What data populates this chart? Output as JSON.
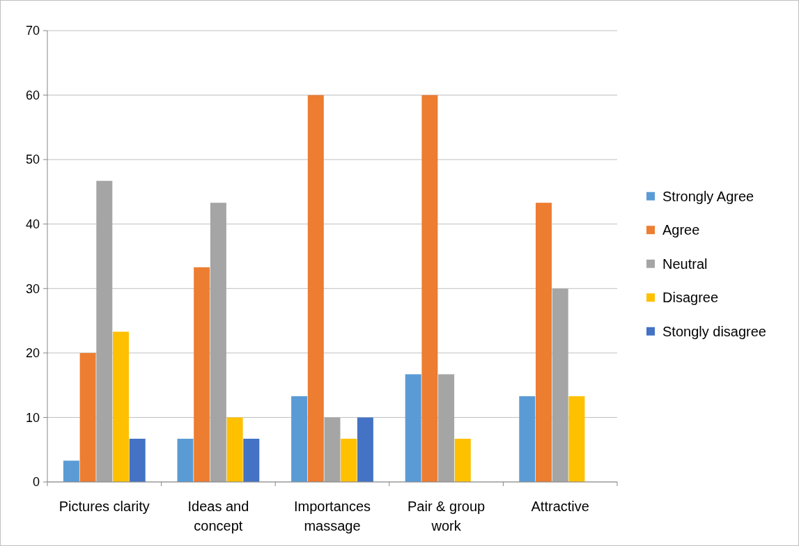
{
  "chart_data": {
    "type": "bar",
    "categories": [
      "Pictures clarity",
      "Ideas and concept",
      "Importances massage",
      "Pair & group work",
      "Attractive"
    ],
    "series": [
      {
        "name": "Strongly Agree",
        "color": "#5b9bd5",
        "values": [
          3.3,
          6.7,
          13.3,
          16.7,
          13.3
        ]
      },
      {
        "name": "Agree",
        "color": "#ed7d31",
        "values": [
          20,
          33.3,
          60,
          60,
          43.3
        ]
      },
      {
        "name": "Neutral",
        "color": "#a5a5a5",
        "values": [
          46.7,
          43.3,
          10,
          16.7,
          30
        ]
      },
      {
        "name": "Disagree",
        "color": "#ffc000",
        "values": [
          23.3,
          10,
          6.7,
          6.7,
          13.3
        ]
      },
      {
        "name": "Stongly disagree",
        "color": "#4472c4",
        "values": [
          6.7,
          6.7,
          10,
          0,
          0
        ]
      }
    ],
    "ylim": [
      0,
      70
    ],
    "yticks": [
      0,
      10,
      20,
      30,
      40,
      50,
      60,
      70
    ],
    "grid": "y",
    "legend": "right"
  }
}
